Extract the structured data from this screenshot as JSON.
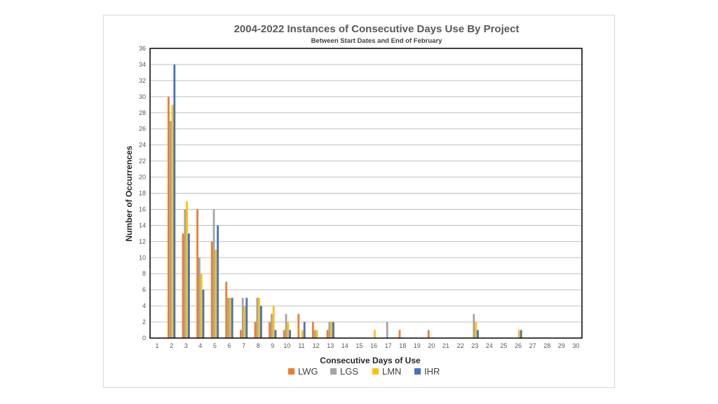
{
  "chart_data": {
    "type": "bar",
    "title": "2004-2022 Instances of Consecutive Days Use By Project",
    "subtitle": "Between Start Dates and End of February",
    "xlabel": "Consecutive Days of Use",
    "ylabel": "Number of Occurrences",
    "ylim": [
      0,
      36
    ],
    "ytick_step": 2,
    "grid": true,
    "legend_position": "bottom",
    "categories": [
      "1",
      "2",
      "3",
      "4",
      "5",
      "6",
      "7",
      "8",
      "9",
      "10",
      "11",
      "12",
      "13",
      "14",
      "15",
      "16",
      "17",
      "18",
      "19",
      "20",
      "21",
      "22",
      "23",
      "24",
      "25",
      "26",
      "27",
      "28",
      "29",
      "30"
    ],
    "series": [
      {
        "name": "LWG",
        "color": "#ed7d31",
        "values": [
          0,
          30,
          13,
          16,
          12,
          7,
          1,
          2,
          2,
          1,
          3,
          2,
          1,
          0,
          0,
          0,
          0,
          1,
          0,
          1,
          0,
          0,
          0,
          0,
          0,
          0,
          0,
          0,
          0,
          0
        ]
      },
      {
        "name": "LGS",
        "color": "#a5a5a5",
        "values": [
          0,
          27,
          16,
          10,
          16,
          5,
          5,
          5,
          3,
          3,
          0,
          1,
          2,
          0,
          0,
          0,
          2,
          0,
          0,
          0,
          0,
          0,
          3,
          0,
          0,
          0,
          0,
          0,
          0,
          0
        ]
      },
      {
        "name": "LMN",
        "color": "#ffc000",
        "values": [
          0,
          29,
          17,
          8,
          11,
          5,
          4,
          5,
          4,
          2,
          1,
          1,
          2,
          0,
          0,
          1,
          0,
          0,
          0,
          0,
          0,
          0,
          2,
          0,
          0,
          1,
          0,
          0,
          0,
          0
        ]
      },
      {
        "name": "IHR",
        "color": "#4472c4",
        "values": [
          0,
          34,
          13,
          6,
          14,
          5,
          5,
          4,
          1,
          1,
          2,
          0,
          2,
          0,
          0,
          0,
          0,
          0,
          0,
          0,
          0,
          0,
          1,
          0,
          0,
          1,
          0,
          0,
          0,
          0
        ]
      }
    ]
  }
}
